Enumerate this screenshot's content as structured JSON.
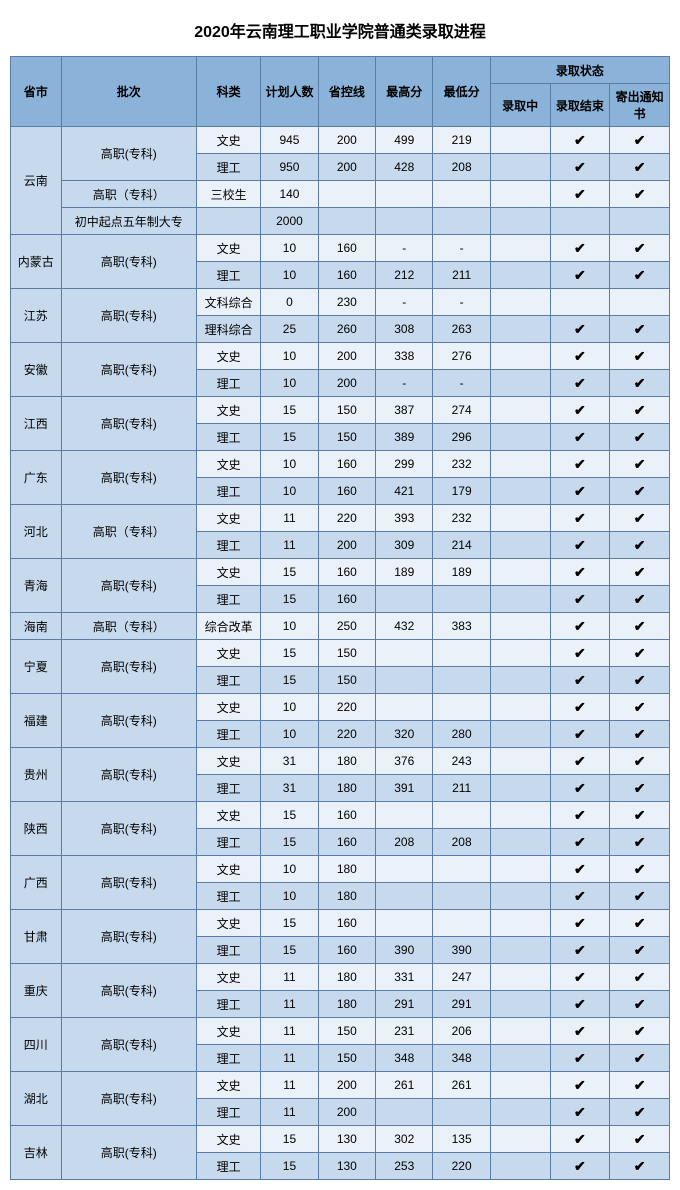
{
  "title": "2020年云南理工职业学院普通类录取进程",
  "headers": {
    "province": "省市",
    "batch": "批次",
    "category": "科类",
    "plan": "计划人数",
    "line": "省控线",
    "max": "最高分",
    "min": "最低分",
    "status_group": "录取状态",
    "s1": "录取中",
    "s2": "录取结束",
    "s3": "寄出通知书"
  },
  "checkmark": "✔",
  "colors": {
    "header_bg": "#8bb2d8",
    "group_bg": "#c7daed",
    "row_light": "#eaf1f8",
    "row_dark": "#c7daed",
    "border": "#5a7da6"
  },
  "groups": [
    {
      "province": "云南",
      "rows": [
        {
          "batch": "高职(专科)",
          "batch_span": 2,
          "cat": "文史",
          "plan": "945",
          "line": "200",
          "max": "499",
          "min": "219",
          "s2": true,
          "s3": true,
          "alt": "A"
        },
        {
          "cat": "理工",
          "plan": "950",
          "line": "200",
          "max": "428",
          "min": "208",
          "s2": true,
          "s3": true,
          "alt": "B"
        },
        {
          "batch": "高职（专科）",
          "batch_span": 1,
          "cat": "三校生",
          "plan": "140",
          "line": "",
          "max": "",
          "min": "",
          "s2": true,
          "s3": true,
          "alt": "A"
        },
        {
          "batch": "初中起点五年制大专",
          "batch_span": 1,
          "cat": "",
          "plan": "2000",
          "line": "",
          "max": "",
          "min": "",
          "s2": false,
          "s3": false,
          "alt": "B"
        }
      ]
    },
    {
      "province": "内蒙古",
      "rows": [
        {
          "batch": "高职(专科)",
          "batch_span": 2,
          "cat": "文史",
          "plan": "10",
          "line": "160",
          "max": "-",
          "min": "-",
          "s2": true,
          "s3": true,
          "alt": "A"
        },
        {
          "cat": "理工",
          "plan": "10",
          "line": "160",
          "max": "212",
          "min": "211",
          "s2": true,
          "s3": true,
          "alt": "B"
        }
      ]
    },
    {
      "province": "江苏",
      "rows": [
        {
          "batch": "高职(专科)",
          "batch_span": 2,
          "cat": "文科综合",
          "plan": "0",
          "line": "230",
          "max": "-",
          "min": "-",
          "s2": false,
          "s3": false,
          "alt": "A"
        },
        {
          "cat": "理科综合",
          "plan": "25",
          "line": "260",
          "max": "308",
          "min": "263",
          "s2": true,
          "s3": true,
          "alt": "B"
        }
      ]
    },
    {
      "province": "安徽",
      "rows": [
        {
          "batch": "高职(专科)",
          "batch_span": 2,
          "cat": "文史",
          "plan": "10",
          "line": "200",
          "max": "338",
          "min": "276",
          "s2": true,
          "s3": true,
          "alt": "A"
        },
        {
          "cat": "理工",
          "plan": "10",
          "line": "200",
          "max": "-",
          "min": "-",
          "s2": true,
          "s3": true,
          "alt": "B"
        }
      ]
    },
    {
      "province": "江西",
      "rows": [
        {
          "batch": "高职(专科)",
          "batch_span": 2,
          "cat": "文史",
          "plan": "15",
          "line": "150",
          "max": "387",
          "min": "274",
          "s2": true,
          "s3": true,
          "alt": "A"
        },
        {
          "cat": "理工",
          "plan": "15",
          "line": "150",
          "max": "389",
          "min": "296",
          "s2": true,
          "s3": true,
          "alt": "B"
        }
      ]
    },
    {
      "province": "广东",
      "rows": [
        {
          "batch": "高职(专科)",
          "batch_span": 2,
          "cat": "文史",
          "plan": "10",
          "line": "160",
          "max": "299",
          "min": "232",
          "s2": true,
          "s3": true,
          "alt": "A"
        },
        {
          "cat": "理工",
          "plan": "10",
          "line": "160",
          "max": "421",
          "min": "179",
          "s2": true,
          "s3": true,
          "alt": "B"
        }
      ]
    },
    {
      "province": "河北",
      "rows": [
        {
          "batch": "高职（专科）",
          "batch_span": 2,
          "cat": "文史",
          "plan": "11",
          "line": "220",
          "max": "393",
          "min": "232",
          "s2": true,
          "s3": true,
          "alt": "A"
        },
        {
          "cat": "理工",
          "plan": "11",
          "line": "200",
          "max": "309",
          "min": "214",
          "s2": true,
          "s3": true,
          "alt": "B"
        }
      ]
    },
    {
      "province": "青海",
      "rows": [
        {
          "batch": "高职(专科)",
          "batch_span": 2,
          "cat": "文史",
          "plan": "15",
          "line": "160",
          "max": "189",
          "min": "189",
          "s2": true,
          "s3": true,
          "alt": "A"
        },
        {
          "cat": "理工",
          "plan": "15",
          "line": "160",
          "max": "",
          "min": "",
          "s2": true,
          "s3": true,
          "alt": "B"
        }
      ]
    },
    {
      "province": "海南",
      "rows": [
        {
          "batch": "高职（专科）",
          "batch_span": 1,
          "cat": "综合改革",
          "plan": "10",
          "line": "250",
          "max": "432",
          "min": "383",
          "s2": true,
          "s3": true,
          "alt": "A"
        }
      ]
    },
    {
      "province": "宁夏",
      "rows": [
        {
          "batch": "高职(专科)",
          "batch_span": 2,
          "cat": "文史",
          "plan": "15",
          "line": "150",
          "max": "",
          "min": "",
          "s2": true,
          "s3": true,
          "alt": "A"
        },
        {
          "cat": "理工",
          "plan": "15",
          "line": "150",
          "max": "",
          "min": "",
          "s2": true,
          "s3": true,
          "alt": "B"
        }
      ]
    },
    {
      "province": "福建",
      "rows": [
        {
          "batch": "高职(专科)",
          "batch_span": 2,
          "cat": "文史",
          "plan": "10",
          "line": "220",
          "max": "",
          "min": "",
          "s2": true,
          "s3": true,
          "alt": "A"
        },
        {
          "cat": "理工",
          "plan": "10",
          "line": "220",
          "max": "320",
          "min": "280",
          "s2": true,
          "s3": true,
          "alt": "B"
        }
      ]
    },
    {
      "province": "贵州",
      "rows": [
        {
          "batch": "高职(专科)",
          "batch_span": 2,
          "cat": "文史",
          "plan": "31",
          "line": "180",
          "max": "376",
          "min": "243",
          "s2": true,
          "s3": true,
          "alt": "A"
        },
        {
          "cat": "理工",
          "plan": "31",
          "line": "180",
          "max": "391",
          "min": "211",
          "s2": true,
          "s3": true,
          "alt": "B"
        }
      ]
    },
    {
      "province": "陕西",
      "rows": [
        {
          "batch": "高职(专科)",
          "batch_span": 2,
          "cat": "文史",
          "plan": "15",
          "line": "160",
          "max": "",
          "min": "",
          "s2": true,
          "s3": true,
          "alt": "A"
        },
        {
          "cat": "理工",
          "plan": "15",
          "line": "160",
          "max": "208",
          "min": "208",
          "s2": true,
          "s3": true,
          "alt": "B"
        }
      ]
    },
    {
      "province": "广西",
      "rows": [
        {
          "batch": "高职(专科)",
          "batch_span": 2,
          "cat": "文史",
          "plan": "10",
          "line": "180",
          "max": "",
          "min": "",
          "s2": true,
          "s3": true,
          "alt": "A"
        },
        {
          "cat": "理工",
          "plan": "10",
          "line": "180",
          "max": "",
          "min": "",
          "s2": true,
          "s3": true,
          "alt": "B"
        }
      ]
    },
    {
      "province": "甘肃",
      "rows": [
        {
          "batch": "高职(专科)",
          "batch_span": 2,
          "cat": "文史",
          "plan": "15",
          "line": "160",
          "max": "",
          "min": "",
          "s2": true,
          "s3": true,
          "alt": "A"
        },
        {
          "cat": "理工",
          "plan": "15",
          "line": "160",
          "max": "390",
          "min": "390",
          "s2": true,
          "s3": true,
          "alt": "B"
        }
      ]
    },
    {
      "province": "重庆",
      "rows": [
        {
          "batch": "高职(专科)",
          "batch_span": 2,
          "cat": "文史",
          "plan": "11",
          "line": "180",
          "max": "331",
          "min": "247",
          "s2": true,
          "s3": true,
          "alt": "A"
        },
        {
          "cat": "理工",
          "plan": "11",
          "line": "180",
          "max": "291",
          "min": "291",
          "s2": true,
          "s3": true,
          "alt": "B"
        }
      ]
    },
    {
      "province": "四川",
      "rows": [
        {
          "batch": "高职(专科)",
          "batch_span": 2,
          "cat": "文史",
          "plan": "11",
          "line": "150",
          "max": "231",
          "min": "206",
          "s2": true,
          "s3": true,
          "alt": "A"
        },
        {
          "cat": "理工",
          "plan": "11",
          "line": "150",
          "max": "348",
          "min": "348",
          "s2": true,
          "s3": true,
          "alt": "B"
        }
      ]
    },
    {
      "province": "湖北",
      "rows": [
        {
          "batch": "高职(专科)",
          "batch_span": 2,
          "cat": "文史",
          "plan": "11",
          "line": "200",
          "max": "261",
          "min": "261",
          "s2": true,
          "s3": true,
          "alt": "A"
        },
        {
          "cat": "理工",
          "plan": "11",
          "line": "200",
          "max": "",
          "min": "",
          "s2": true,
          "s3": true,
          "alt": "B"
        }
      ]
    },
    {
      "province": "吉林",
      "rows": [
        {
          "batch": "高职(专科)",
          "batch_span": 2,
          "cat": "文史",
          "plan": "15",
          "line": "130",
          "max": "302",
          "min": "135",
          "s2": true,
          "s3": true,
          "alt": "A"
        },
        {
          "cat": "理工",
          "plan": "15",
          "line": "130",
          "max": "253",
          "min": "220",
          "s2": true,
          "s3": true,
          "alt": "B"
        }
      ]
    }
  ]
}
